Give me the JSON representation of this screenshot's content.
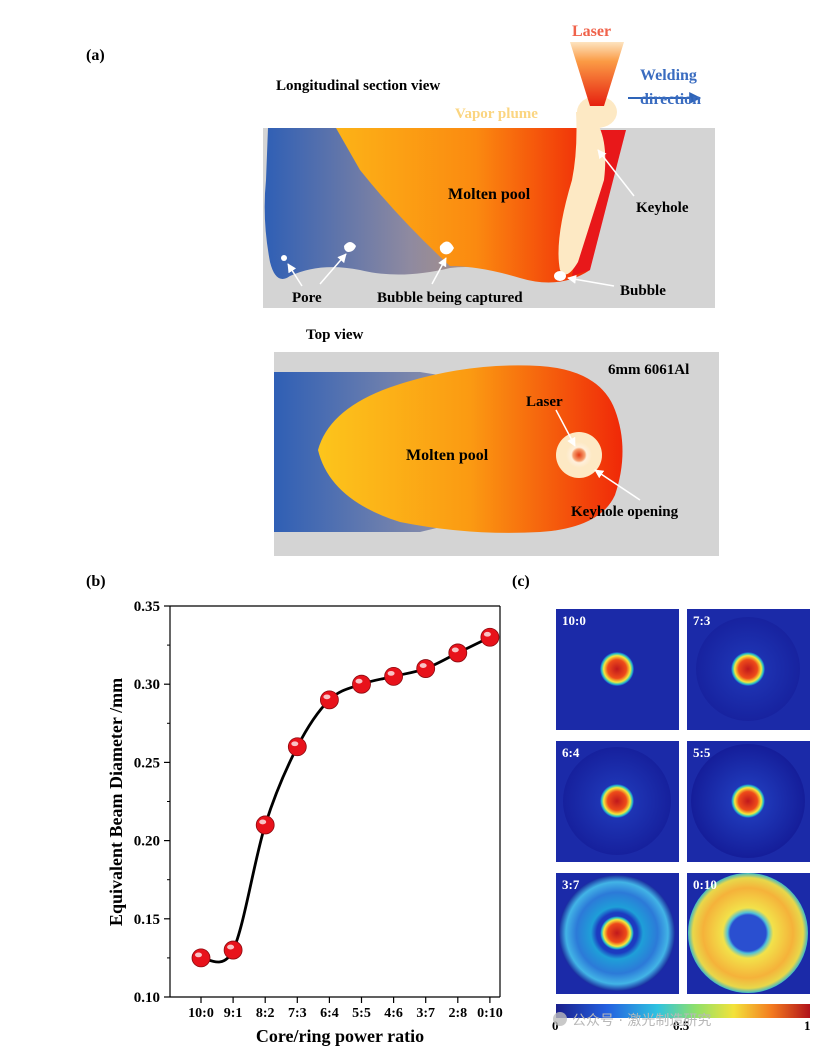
{
  "panel_a": {
    "label": "(a)",
    "section_title": "Longitudinal section view",
    "laser": "Laser",
    "welding_direction_line1": "Welding",
    "welding_direction_line2": "direction",
    "vapor_plume": "Vapor plume",
    "molten_pool": "Molten pool",
    "keyhole": "Keyhole",
    "pore": "Pore",
    "bubble_captured": "Bubble being captured",
    "bubble": "Bubble",
    "top_view_title": "Top view",
    "material": "6mm 6061Al",
    "top_laser": "Laser",
    "top_molten_pool": "Molten pool",
    "keyhole_opening": "Keyhole opening"
  },
  "panel_c": {
    "label": "(c)",
    "tiles": [
      "10:0",
      "7:3",
      "6:4",
      "5:5",
      "3:7",
      "0:10"
    ],
    "colorbar_ticks": [
      "0",
      "0.5",
      "1"
    ],
    "watermark": "公众号 · 激光制造研究"
  },
  "chart_data": {
    "type": "line",
    "label": "(b)",
    "title": "",
    "xlabel": "Core/ring power ratio",
    "ylabel": "Equivalent Beam Diameter /mm",
    "categories": [
      "10:0",
      "9:1",
      "8:2",
      "7:3",
      "6:4",
      "5:5",
      "4:6",
      "3:7",
      "2:8",
      "0:10"
    ],
    "series": [
      {
        "name": "Equivalent Beam Diameter",
        "values": [
          0.125,
          0.13,
          0.21,
          0.26,
          0.29,
          0.3,
          0.305,
          0.31,
          0.32,
          0.33
        ]
      }
    ],
    "ylim": [
      0.1,
      0.35
    ],
    "yticks": [
      "0.10",
      "0.15",
      "0.20",
      "0.25",
      "0.30",
      "0.35"
    ],
    "grid": false,
    "colors": {
      "marker": "#e8121b",
      "line": "#000000"
    }
  }
}
